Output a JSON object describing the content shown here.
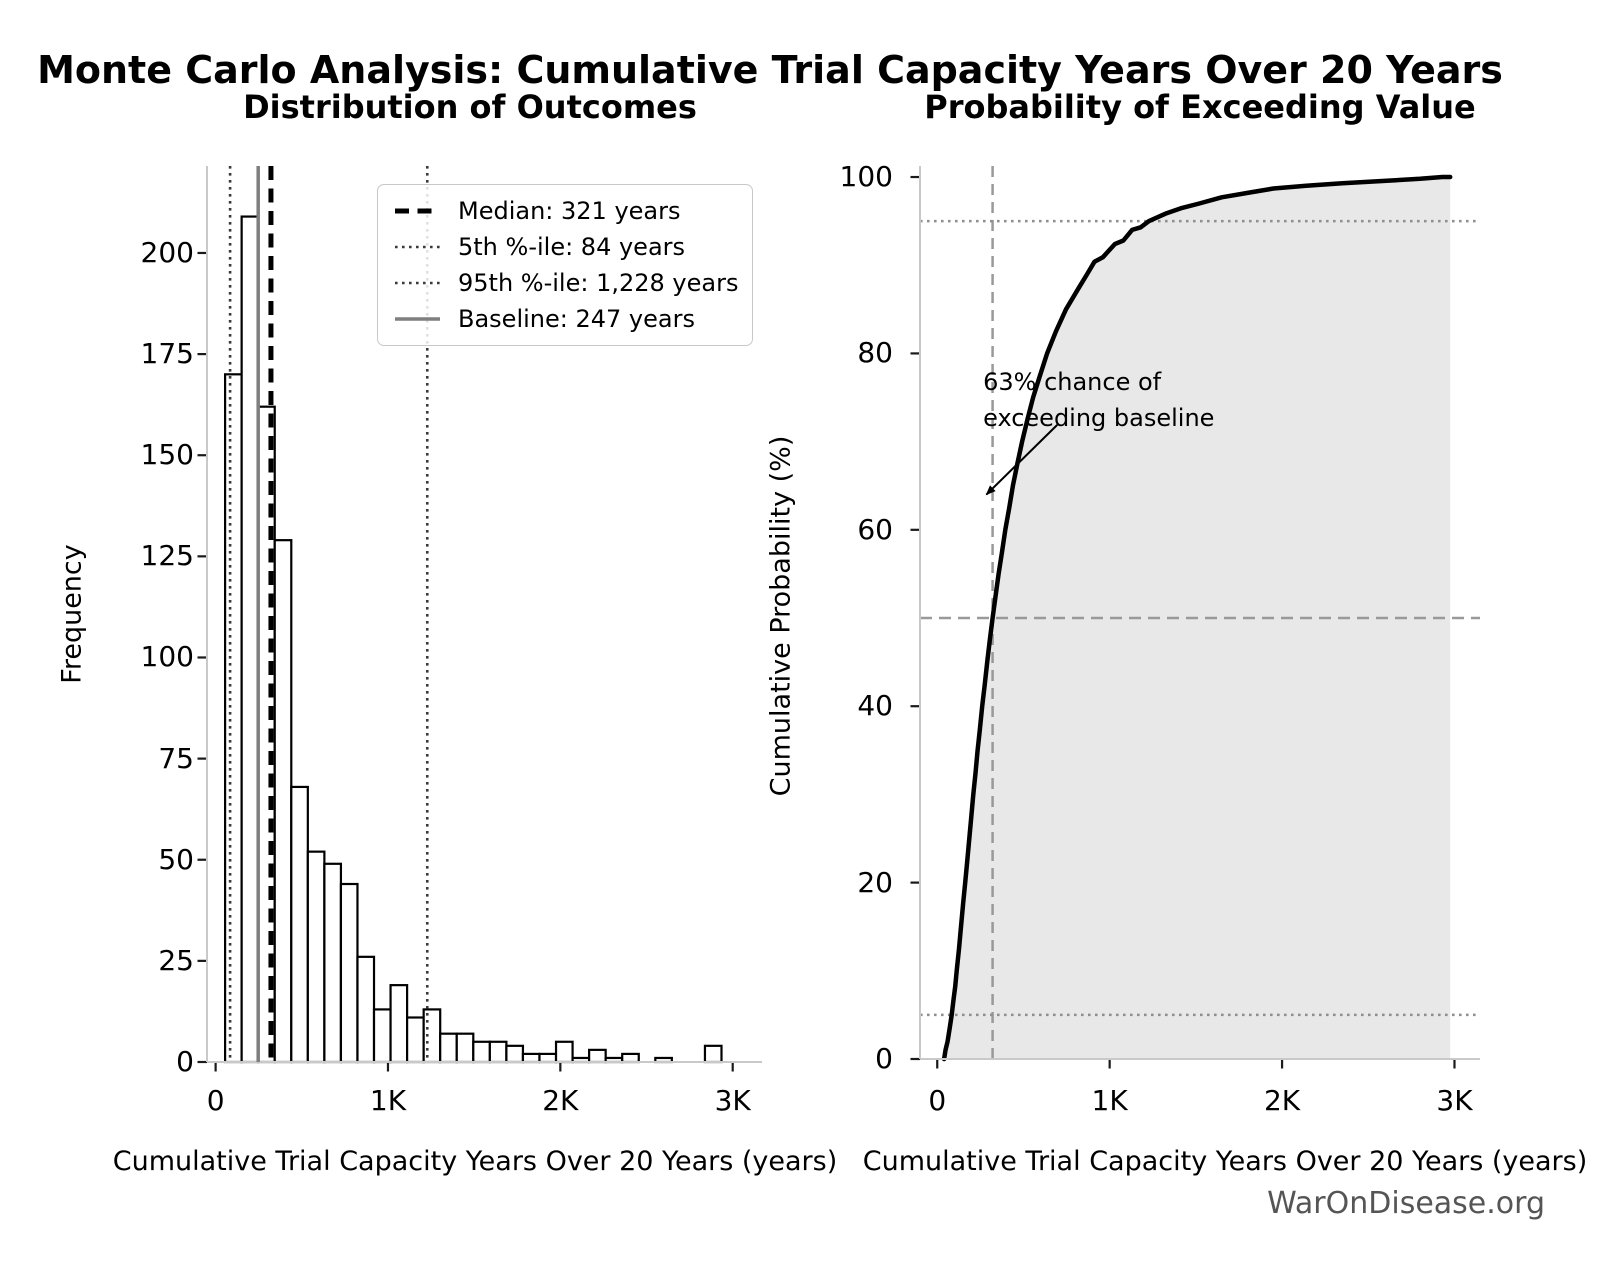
{
  "title": "Monte Carlo Analysis: Cumulative Trial Capacity Years Over 20 Years",
  "watermark": "WarOnDisease.org",
  "chart_data": [
    {
      "type": "bar",
      "subtype": "histogram",
      "title": "Distribution of Outcomes",
      "xlabel": "Cumulative Trial Capacity Years Over 20 Years (years)",
      "ylabel": "Frequency",
      "bin_start": 55,
      "bin_width": 96,
      "frequencies": [
        170,
        209,
        162,
        129,
        68,
        52,
        49,
        44,
        26,
        13,
        19,
        11,
        13,
        7,
        7,
        5,
        5,
        4,
        2,
        2,
        5,
        1,
        3,
        1,
        2,
        0,
        1,
        0,
        0,
        4
      ],
      "xlim": [
        -50,
        3170
      ],
      "ylim": [
        0,
        221.5
      ],
      "x_ticks": [
        {
          "value": 0,
          "label": "0"
        },
        {
          "value": 1000,
          "label": "1K"
        },
        {
          "value": 2000,
          "label": "2K"
        },
        {
          "value": 3000,
          "label": "3K"
        }
      ],
      "y_ticks": [
        {
          "value": 0,
          "label": "0"
        },
        {
          "value": 25,
          "label": "25"
        },
        {
          "value": 50,
          "label": "50"
        },
        {
          "value": 75,
          "label": "75"
        },
        {
          "value": 100,
          "label": "100"
        },
        {
          "value": 125,
          "label": "125"
        },
        {
          "value": 150,
          "label": "150"
        },
        {
          "value": 175,
          "label": "175"
        },
        {
          "value": 200,
          "label": "200"
        }
      ],
      "bar_fill": "#ffffff",
      "bar_edge": "#000000",
      "grid": false,
      "legend_position": "upper right",
      "reference_lines": [
        {
          "id": "median",
          "value": 321,
          "style": "dashed",
          "color": "#000000",
          "width": 5,
          "dash": "14 8.5",
          "legend_label": "Median: 321 years"
        },
        {
          "id": "p5",
          "value": 84,
          "style": "dotted",
          "color": "#3a3a3a",
          "width": 2.6,
          "dash": "2.6 4.4",
          "legend_label": "5th %-ile: 84 years"
        },
        {
          "id": "p95",
          "value": 1228,
          "style": "dotted",
          "color": "#3a3a3a",
          "width": 2.6,
          "dash": "2.6 4.4",
          "legend_label": "95th %-ile: 1,228 years"
        },
        {
          "id": "baseline",
          "value": 247,
          "style": "solid",
          "color": "#7f7f7f",
          "width": 3.5,
          "dash": "",
          "legend_label": "Baseline: 247 years"
        }
      ]
    },
    {
      "type": "line",
      "subtype": "empirical-cdf",
      "title": "Probability of Exceeding Value",
      "xlabel": "Cumulative Trial Capacity Years Over 20 Years (years)",
      "ylabel": "Cumulative Probability (%)",
      "xlim": [
        -100,
        3148
      ],
      "ylim": [
        0,
        101.25
      ],
      "x_ticks": [
        {
          "value": 0,
          "label": "0"
        },
        {
          "value": 1000,
          "label": "1K"
        },
        {
          "value": 2000,
          "label": "2K"
        },
        {
          "value": 3000,
          "label": "3K"
        }
      ],
      "y_ticks": [
        {
          "value": 0,
          "label": "0"
        },
        {
          "value": 20,
          "label": "20"
        },
        {
          "value": 40,
          "label": "40"
        },
        {
          "value": 60,
          "label": "60"
        },
        {
          "value": 80,
          "label": "80"
        },
        {
          "value": 100,
          "label": "100"
        }
      ],
      "line_color": "#000000",
      "line_width": 4.5,
      "fill_color": "#e8e8e8",
      "points": [
        [
          40,
          0
        ],
        [
          48,
          1
        ],
        [
          60,
          2
        ],
        [
          72,
          3.5
        ],
        [
          84,
          5
        ],
        [
          95,
          6.8
        ],
        [
          104,
          8.2
        ],
        [
          113,
          10
        ],
        [
          126,
          12.5
        ],
        [
          138,
          15
        ],
        [
          150,
          17.6
        ],
        [
          162,
          20
        ],
        [
          174,
          22.4
        ],
        [
          186,
          25
        ],
        [
          198,
          27.6
        ],
        [
          209,
          30
        ],
        [
          222,
          32.4
        ],
        [
          234,
          35
        ],
        [
          247,
          37.3
        ],
        [
          261,
          40
        ],
        [
          275,
          42.4
        ],
        [
          290,
          45
        ],
        [
          305,
          47.5
        ],
        [
          321,
          50
        ],
        [
          339,
          52.6
        ],
        [
          356,
          55
        ],
        [
          375,
          57.4
        ],
        [
          395,
          60
        ],
        [
          417,
          62.4
        ],
        [
          439,
          65
        ],
        [
          464,
          67.4
        ],
        [
          492,
          70
        ],
        [
          523,
          72.5
        ],
        [
          556,
          75
        ],
        [
          594,
          77.4
        ],
        [
          637,
          80
        ],
        [
          688,
          82.5
        ],
        [
          747,
          85
        ],
        [
          823,
          87.5
        ],
        [
          870,
          89
        ],
        [
          912,
          90.4
        ],
        [
          960,
          90.9
        ],
        [
          1030,
          92.4
        ],
        [
          1080,
          92.8
        ],
        [
          1130,
          94
        ],
        [
          1180,
          94.3
        ],
        [
          1228,
          95
        ],
        [
          1330,
          95.9
        ],
        [
          1420,
          96.5
        ],
        [
          1520,
          97
        ],
        [
          1650,
          97.7
        ],
        [
          1800,
          98.2
        ],
        [
          1950,
          98.7
        ],
        [
          2140,
          99
        ],
        [
          2350,
          99.3
        ],
        [
          2620,
          99.6
        ],
        [
          2800,
          99.8
        ],
        [
          2930,
          100
        ],
        [
          2975,
          100
        ]
      ],
      "reference_lines": [
        {
          "id": "median",
          "orientation": "vertical",
          "value": 321,
          "style": "dashed",
          "color": "#999999",
          "width": 2.5,
          "dash": "11 7"
        },
        {
          "id": "p50",
          "orientation": "horizontal",
          "value": 50,
          "style": "dashed",
          "color": "#999999",
          "width": 2.5,
          "dash": "12 7"
        },
        {
          "id": "p95",
          "orientation": "horizontal",
          "value": 95,
          "style": "dotted",
          "color": "#8f8f8f",
          "width": 2.5,
          "dash": "2.6 4.4"
        },
        {
          "id": "p5",
          "orientation": "horizontal",
          "value": 5,
          "style": "dotted",
          "color": "#8f8f8f",
          "width": 2.5,
          "dash": "2.6 4.4"
        }
      ],
      "annotation": {
        "text": "63% chance of\nexceeding baseline",
        "text_xy": [
          266,
          78.8
        ],
        "arrow_from_xy": [
          696,
          71.9
        ],
        "arrow_to_xy": [
          285,
          64
        ]
      }
    }
  ]
}
